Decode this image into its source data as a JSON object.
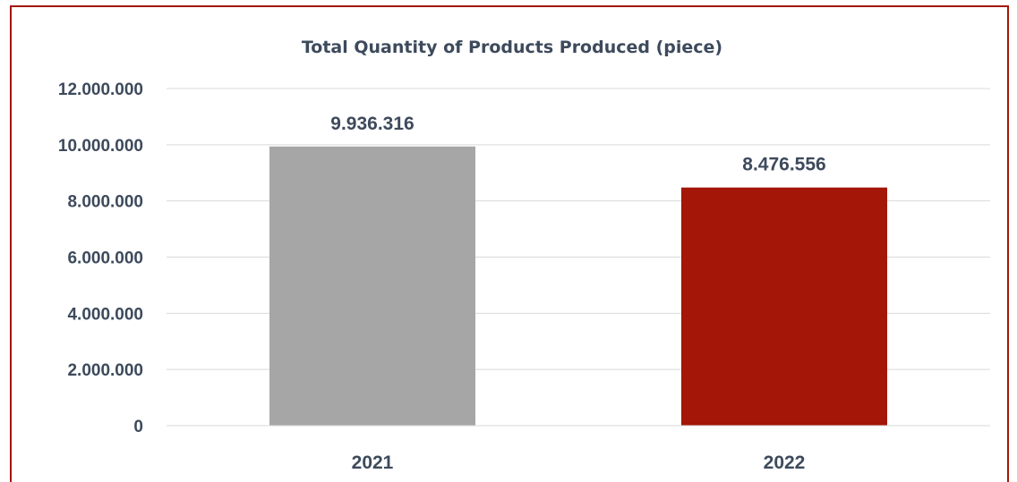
{
  "chart_data": {
    "type": "bar",
    "title": "Total Quantity of Products Produced (piece)",
    "xlabel": "",
    "ylabel": "",
    "categories": [
      "2021",
      "2022"
    ],
    "values": [
      9936316,
      8476556
    ],
    "value_labels": [
      "9.936.316",
      "8.476.556"
    ],
    "bar_colors": [
      "#a6a6a6",
      "#a31608"
    ],
    "ylim": [
      0,
      12000000
    ],
    "yticks": [
      0,
      2000000,
      4000000,
      6000000,
      8000000,
      10000000,
      12000000
    ],
    "ytick_labels": [
      "0",
      "2.000.000",
      "4.000.000",
      "6.000.000",
      "8.000.000",
      "10.000.000",
      "12.000.000"
    ],
    "grid": true,
    "legend": "none",
    "text_color": "#3d4a5c",
    "grid_color": "#d9d9d9",
    "border_color": "#a31608"
  }
}
